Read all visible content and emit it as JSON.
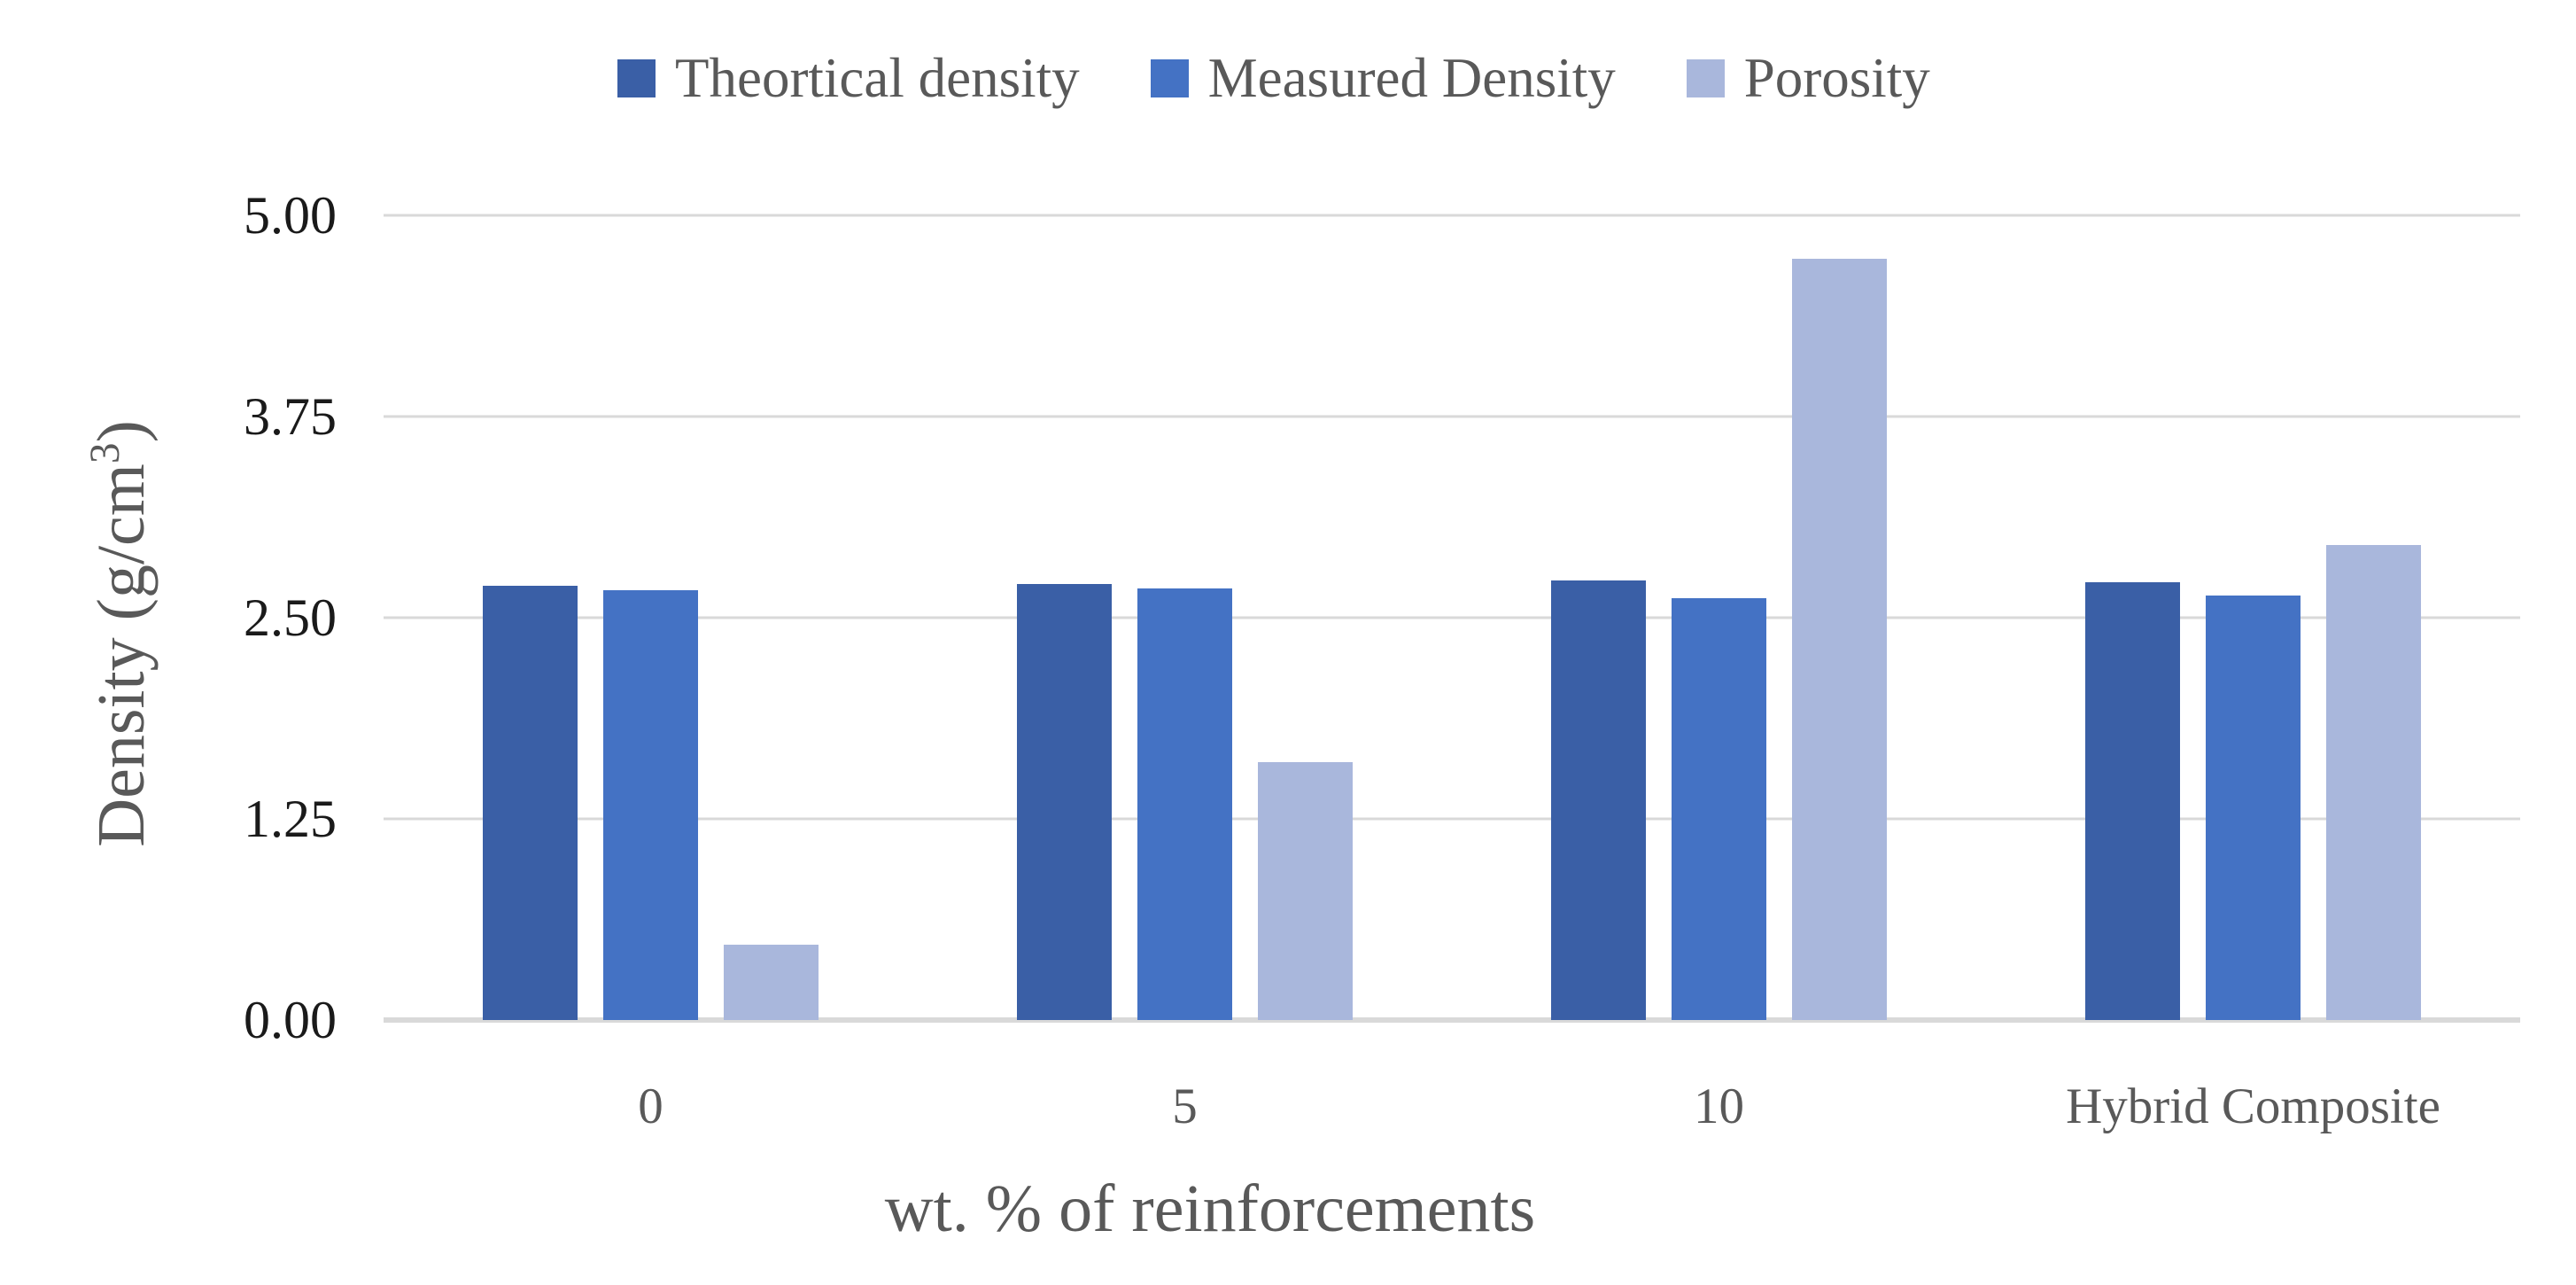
{
  "chart_data": {
    "type": "bar",
    "categories": [
      "0",
      "5",
      "10",
      "Hybrid Composite"
    ],
    "series": [
      {
        "name": "Theortical density",
        "color": "#3A5FA6",
        "values": [
          2.7,
          2.71,
          2.73,
          2.72
        ]
      },
      {
        "name": "Measured Density",
        "color": "#4472C4",
        "values": [
          2.67,
          2.68,
          2.62,
          2.64
        ]
      },
      {
        "name": "Porosity",
        "color": "#A9B7DC",
        "values": [
          0.47,
          1.6,
          4.73,
          2.95
        ]
      }
    ],
    "xlabel": "wt. % of reinforcements",
    "ylabel": "Density (g/cm³)",
    "ylim": [
      0,
      5
    ],
    "ytick_step": 1.25,
    "yticks": [
      "5.00",
      "3.75",
      "2.50",
      "1.25",
      "0.00"
    ],
    "grid": true,
    "legend_position": "top"
  },
  "axes": {
    "x_title": "wt. % of reinforcements",
    "y_title_prefix": "Density (g/cm",
    "y_title_sup": "3",
    "y_title_suffix": ")"
  },
  "colors": {
    "gridline": "#D9D9D9",
    "axis_line": "#D9D9D9",
    "tick_text": "#1a1a1a",
    "label_text": "#595959",
    "background": "#FFFFFF"
  }
}
